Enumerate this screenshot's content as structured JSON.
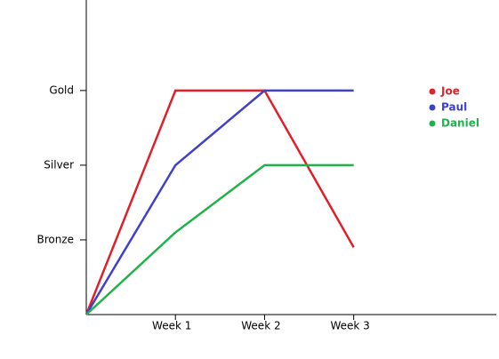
{
  "chart_data": {
    "type": "line",
    "x": [
      0,
      1,
      2,
      3
    ],
    "series": [
      {
        "name": "Joe",
        "color": "#e0202a",
        "values": [
          0,
          3,
          3,
          0.9
        ]
      },
      {
        "name": "Paul",
        "color": "#4040c8",
        "values": [
          0,
          2,
          3,
          3
        ]
      },
      {
        "name": "Daniel",
        "color": "#22b24c",
        "values": [
          0,
          1.1,
          2,
          2
        ]
      }
    ],
    "xlim": [
      0,
      4.6
    ],
    "xticks": [
      {
        "value": 1,
        "label": "Week 1"
      },
      {
        "value": 2,
        "label": "Week 2"
      },
      {
        "value": 3,
        "label": "Week 3"
      }
    ],
    "ylim": [
      0,
      4.2
    ],
    "yticks": [
      {
        "value": 1,
        "label": "Bronze"
      },
      {
        "value": 2,
        "label": "Silver"
      },
      {
        "value": 3,
        "label": "Gold"
      }
    ],
    "grid": false,
    "legend": "upper right"
  }
}
